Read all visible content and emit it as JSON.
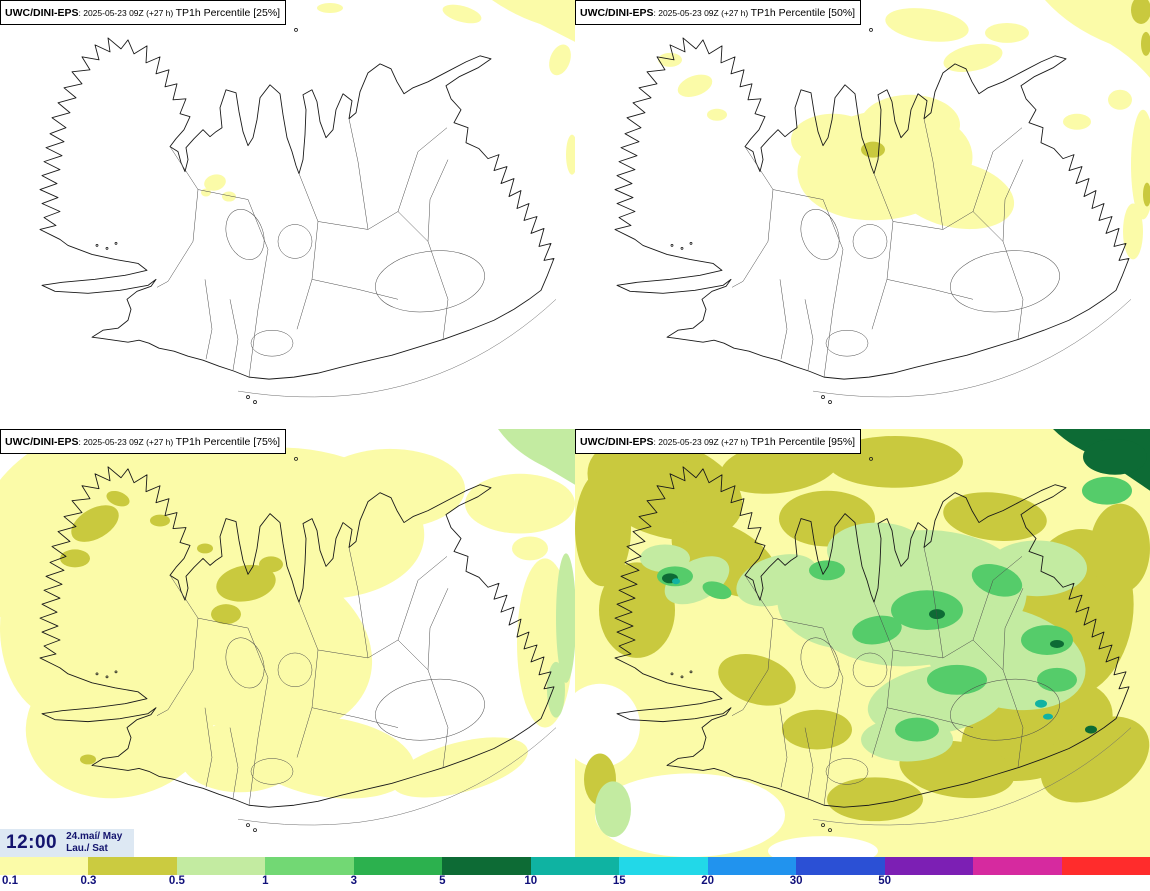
{
  "header": {
    "model_label": "UWC/DINI-EPS",
    "run_label": ": 2025-05-23 09Z (+27 h) "
  },
  "panels": [
    {
      "variable_label": "TP1h Percentile [25%]"
    },
    {
      "variable_label": "TP1h Percentile [50%]"
    },
    {
      "variable_label": "TP1h Percentile [75%]"
    },
    {
      "variable_label": "TP1h Percentile [95%]"
    }
  ],
  "footer": {
    "time": "12:00",
    "date_line1": "24.maí/ May",
    "date_line2": "Lau./ Sat"
  },
  "colorbar": {
    "labels": [
      "0.1",
      "0.3",
      "0.5",
      "1",
      "3",
      "5",
      "10",
      "15",
      "20",
      "30",
      "50"
    ],
    "colors": [
      "#fbfba8",
      "#cbcb40",
      "#c3eba1",
      "#72d874",
      "#2cb14e",
      "#0d6b35",
      "#0fb3a2",
      "#22d8e8",
      "#2193ee",
      "#2b50d5",
      "#7c1fb4",
      "#d62a9f",
      "#ff2c2c"
    ],
    "fill_colors": {
      "pale_yellow": "#fbfba8",
      "olive_yellow": "#c9c93e",
      "light_green": "#c3eba1",
      "medium_green": "#55cc6a",
      "dark_green": "#0d6b35",
      "teal": "#12b2a2"
    }
  }
}
